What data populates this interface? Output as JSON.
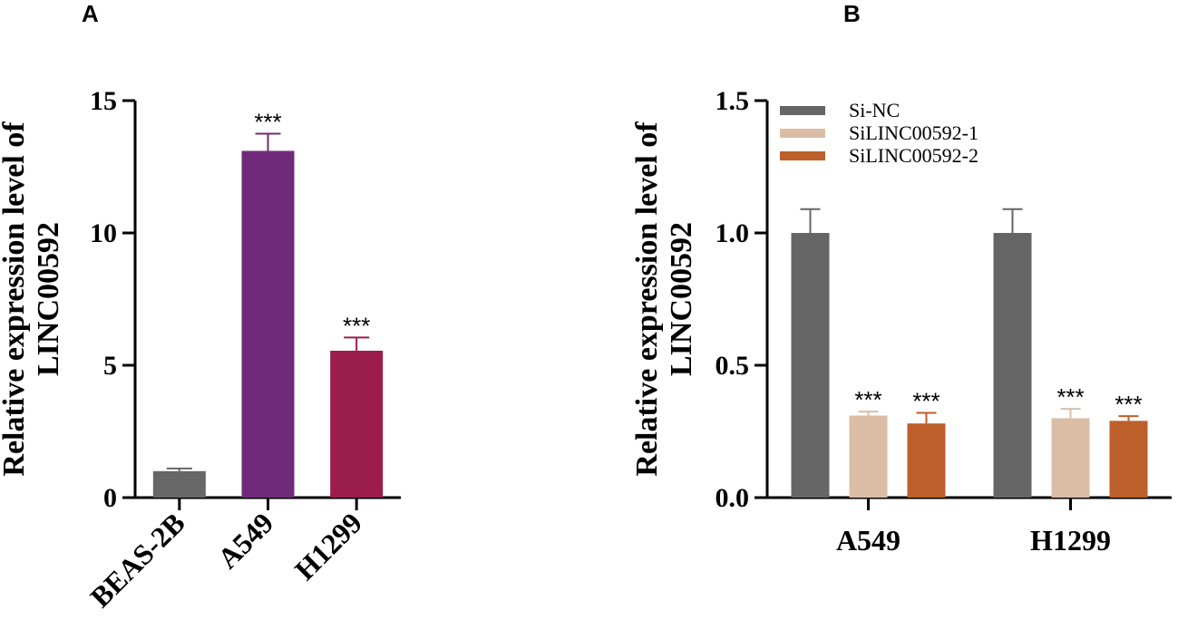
{
  "panels": {
    "a": {
      "label": "A"
    },
    "b": {
      "label": "B"
    }
  },
  "chart_data": [
    {
      "type": "bar",
      "ylabel": "Relative expression level of LINC00592",
      "ylabel_lines": [
        "Relative expression level of",
        "LINC00592"
      ],
      "ylim": [
        0,
        15
      ],
      "yticks": [
        0,
        5,
        10,
        15
      ],
      "ytick_labels": [
        "0",
        "5",
        "10",
        "15"
      ],
      "categories": [
        "BEAS-2B",
        "A549",
        "H1299"
      ],
      "values": [
        1.0,
        13.1,
        5.55
      ],
      "errors": [
        0.1,
        0.65,
        0.5
      ],
      "significance": [
        "",
        "***",
        "***"
      ],
      "colors": [
        "#666766",
        "#702a7a",
        "#9b1d4c"
      ]
    },
    {
      "type": "bar",
      "ylabel": "Relative expression level of LINC00592",
      "ylabel_lines": [
        "Relative expression level of",
        "LINC00592"
      ],
      "ylim": [
        0,
        1.5
      ],
      "yticks": [
        0,
        0.5,
        1.0,
        1.5
      ],
      "ytick_labels": [
        "0.0",
        "0.5",
        "1.0",
        "1.5"
      ],
      "categories": [
        "A549",
        "H1299"
      ],
      "legend_position": "top-left",
      "series": [
        {
          "name": "Si-NC",
          "color": "#646564",
          "values": [
            1.0,
            1.0
          ],
          "errors": [
            0.09,
            0.09
          ],
          "significance": [
            "",
            ""
          ]
        },
        {
          "name": "SiLINC00592-1",
          "color": "#dbbda5",
          "values": [
            0.31,
            0.3
          ],
          "errors": [
            0.015,
            0.035
          ],
          "significance": [
            "***",
            "***"
          ]
        },
        {
          "name": "SiLINC00592-2",
          "color": "#bd5f2a",
          "values": [
            0.28,
            0.29
          ],
          "errors": [
            0.04,
            0.018
          ],
          "significance": [
            "***",
            "***"
          ]
        }
      ]
    }
  ]
}
